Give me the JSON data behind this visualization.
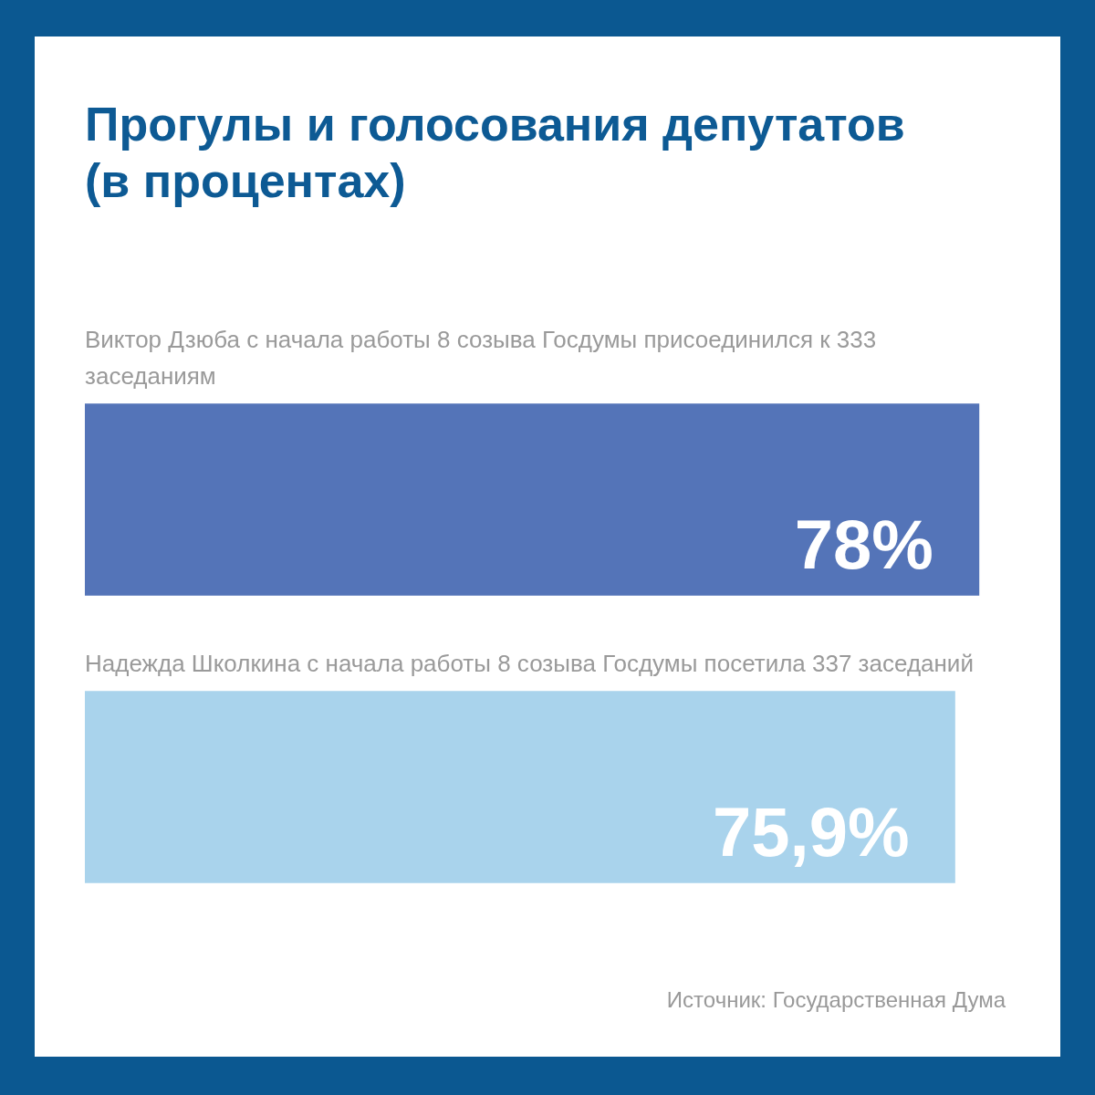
{
  "chart_data": {
    "type": "bar",
    "orientation": "horizontal",
    "title": "Прогулы и голосования депутатов (в процентах)",
    "categories": [
      "Виктор Дзюба с начала работы 8 созыва Госдумы присоединился к 333 заседаниям",
      "Надежда Школкина с начала работы 8 созыва Госдумы посетила 337 заседаний"
    ],
    "values": [
      78,
      75.9
    ],
    "colors": [
      "#5474b8",
      "#a9d3ec"
    ],
    "value_labels": [
      "78%",
      "75,9%"
    ],
    "annotations": [
      "Источник: Государственная Дума"
    ]
  }
}
